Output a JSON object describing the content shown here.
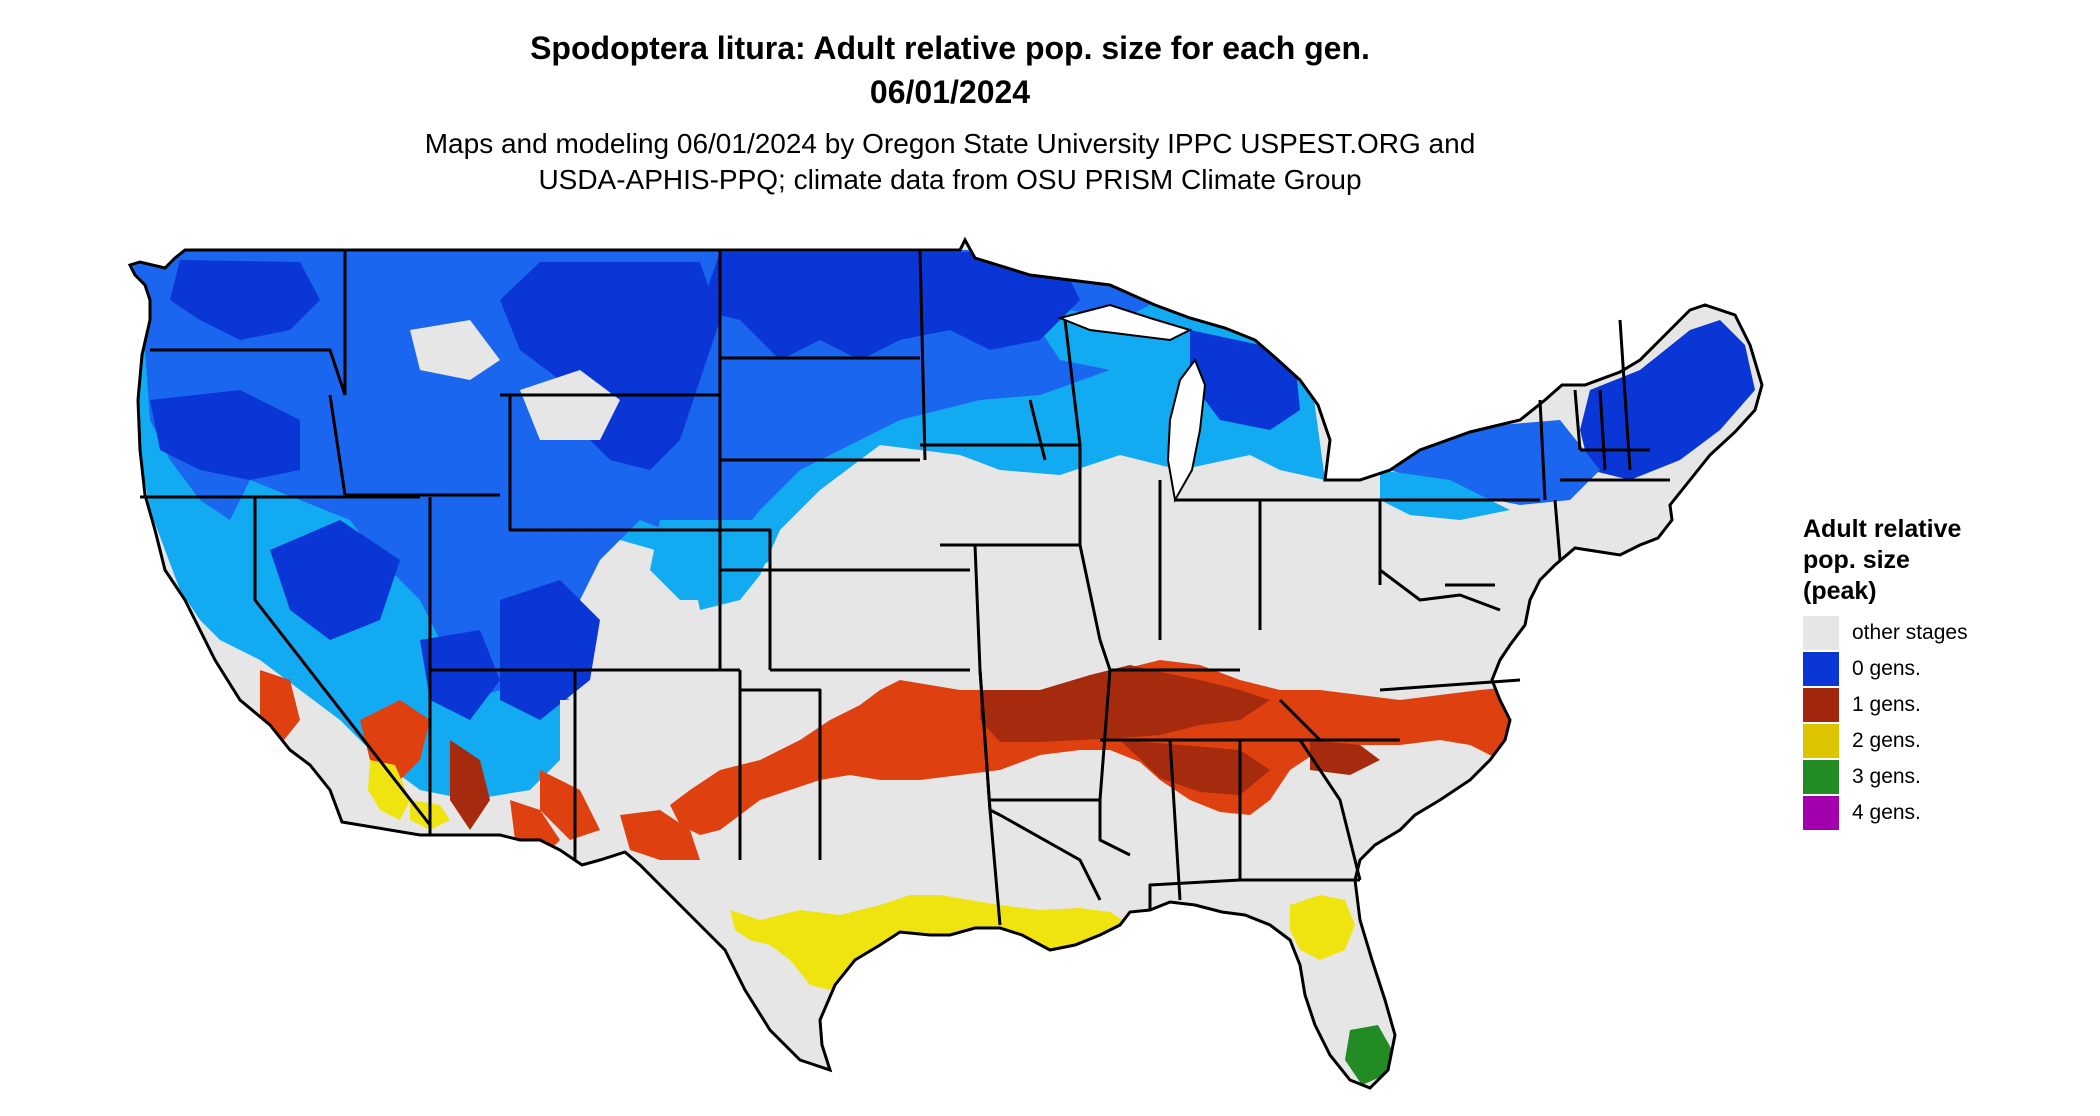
{
  "title_line1": "Spodoptera litura: Adult relative pop. size for each gen.",
  "title_line2": "06/01/2024",
  "subtitle_line1": "Maps and modeling 06/01/2024 by Oregon State University IPPC USPEST.ORG and",
  "subtitle_line2": "USDA-APHIS-PPQ; climate data from OSU PRISM Climate Group",
  "legend": {
    "title_lines": [
      "Adult relative",
      "pop. size",
      "(peak)"
    ],
    "items": [
      {
        "label": "other stages",
        "color": "#e6e6e6"
      },
      {
        "label": "0 gens.",
        "color": "#0a36d6"
      },
      {
        "label": "1 gens.",
        "color": "#a3260e"
      },
      {
        "label": "2 gens.",
        "color": "#dcc400"
      },
      {
        "label": "3 gens.",
        "color": "#238b23"
      },
      {
        "label": "4 gens.",
        "color": "#a100ac"
      }
    ]
  },
  "map_colors": {
    "background": "#e6e6e6",
    "blue_dark": "#0a36d6",
    "blue_mid": "#1a66ee",
    "blue_light": "#12aaf0",
    "orange": "#de4010",
    "red_dark": "#a52a0e",
    "yellow": "#f0e410",
    "green": "#238b23"
  }
}
